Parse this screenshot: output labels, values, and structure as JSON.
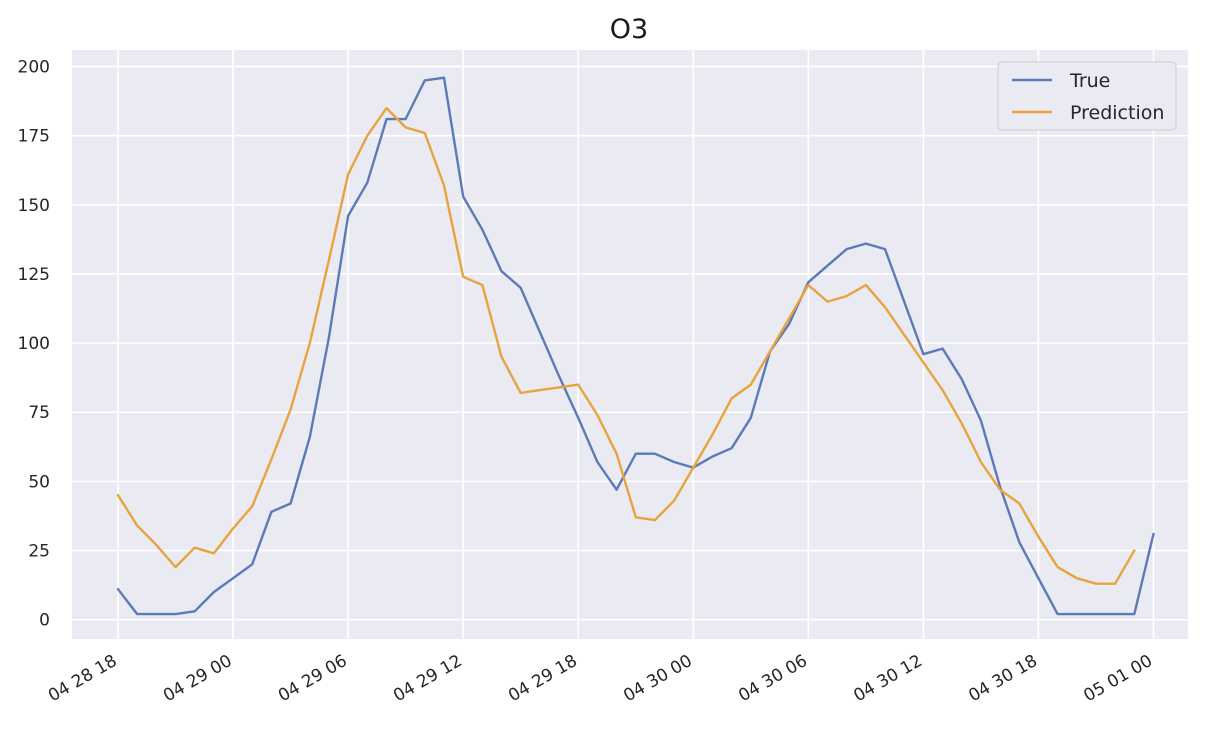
{
  "chart_data": {
    "type": "line",
    "title": "O3",
    "xlabel": "",
    "ylabel": "",
    "x_unit": "hour",
    "x_start": "04 28 18",
    "x_ticks": [
      {
        "hour": 0,
        "label": "04 28 18"
      },
      {
        "hour": 6,
        "label": "04 29 00"
      },
      {
        "hour": 12,
        "label": "04 29 06"
      },
      {
        "hour": 18,
        "label": "04 29 12"
      },
      {
        "hour": 24,
        "label": "04 29 18"
      },
      {
        "hour": 30,
        "label": "04 30 00"
      },
      {
        "hour": 36,
        "label": "04 30 06"
      },
      {
        "hour": 42,
        "label": "04 30 12"
      },
      {
        "hour": 48,
        "label": "04 30 18"
      },
      {
        "hour": 54,
        "label": "05 01 00"
      }
    ],
    "xlim": [
      -2.4,
      55.8
    ],
    "ylim": [
      -7,
      206
    ],
    "y_ticks": [
      0,
      25,
      50,
      75,
      100,
      125,
      150,
      175,
      200
    ],
    "grid": true,
    "legend_position": "top-right",
    "series": [
      {
        "name": "True",
        "color": "#5c7ab8",
        "values": [
          11,
          2,
          2,
          2,
          3,
          10,
          15,
          20,
          39,
          42,
          66,
          102,
          146,
          158,
          181,
          181,
          195,
          196,
          153,
          141,
          126,
          120,
          104,
          88,
          73,
          57,
          47,
          60,
          60,
          57,
          55,
          59,
          62,
          73,
          97,
          107,
          122,
          128,
          134,
          136,
          134,
          115,
          96,
          98,
          87,
          72,
          48,
          28,
          15,
          2,
          2,
          2,
          2,
          2,
          31
        ]
      },
      {
        "name": "Prediction",
        "color": "#e8a33d",
        "values": [
          45,
          34,
          27,
          19,
          26,
          24,
          33,
          41,
          58,
          76,
          100,
          130,
          161,
          175,
          185,
          178,
          176,
          157,
          124,
          121,
          95,
          82,
          83,
          84,
          85,
          74,
          60,
          37,
          36,
          43,
          55,
          67,
          80,
          85,
          97,
          109,
          121,
          115,
          117,
          121,
          113,
          103,
          93,
          83,
          71,
          57,
          47,
          42,
          30,
          19,
          15,
          13,
          13,
          25
        ]
      }
    ]
  }
}
